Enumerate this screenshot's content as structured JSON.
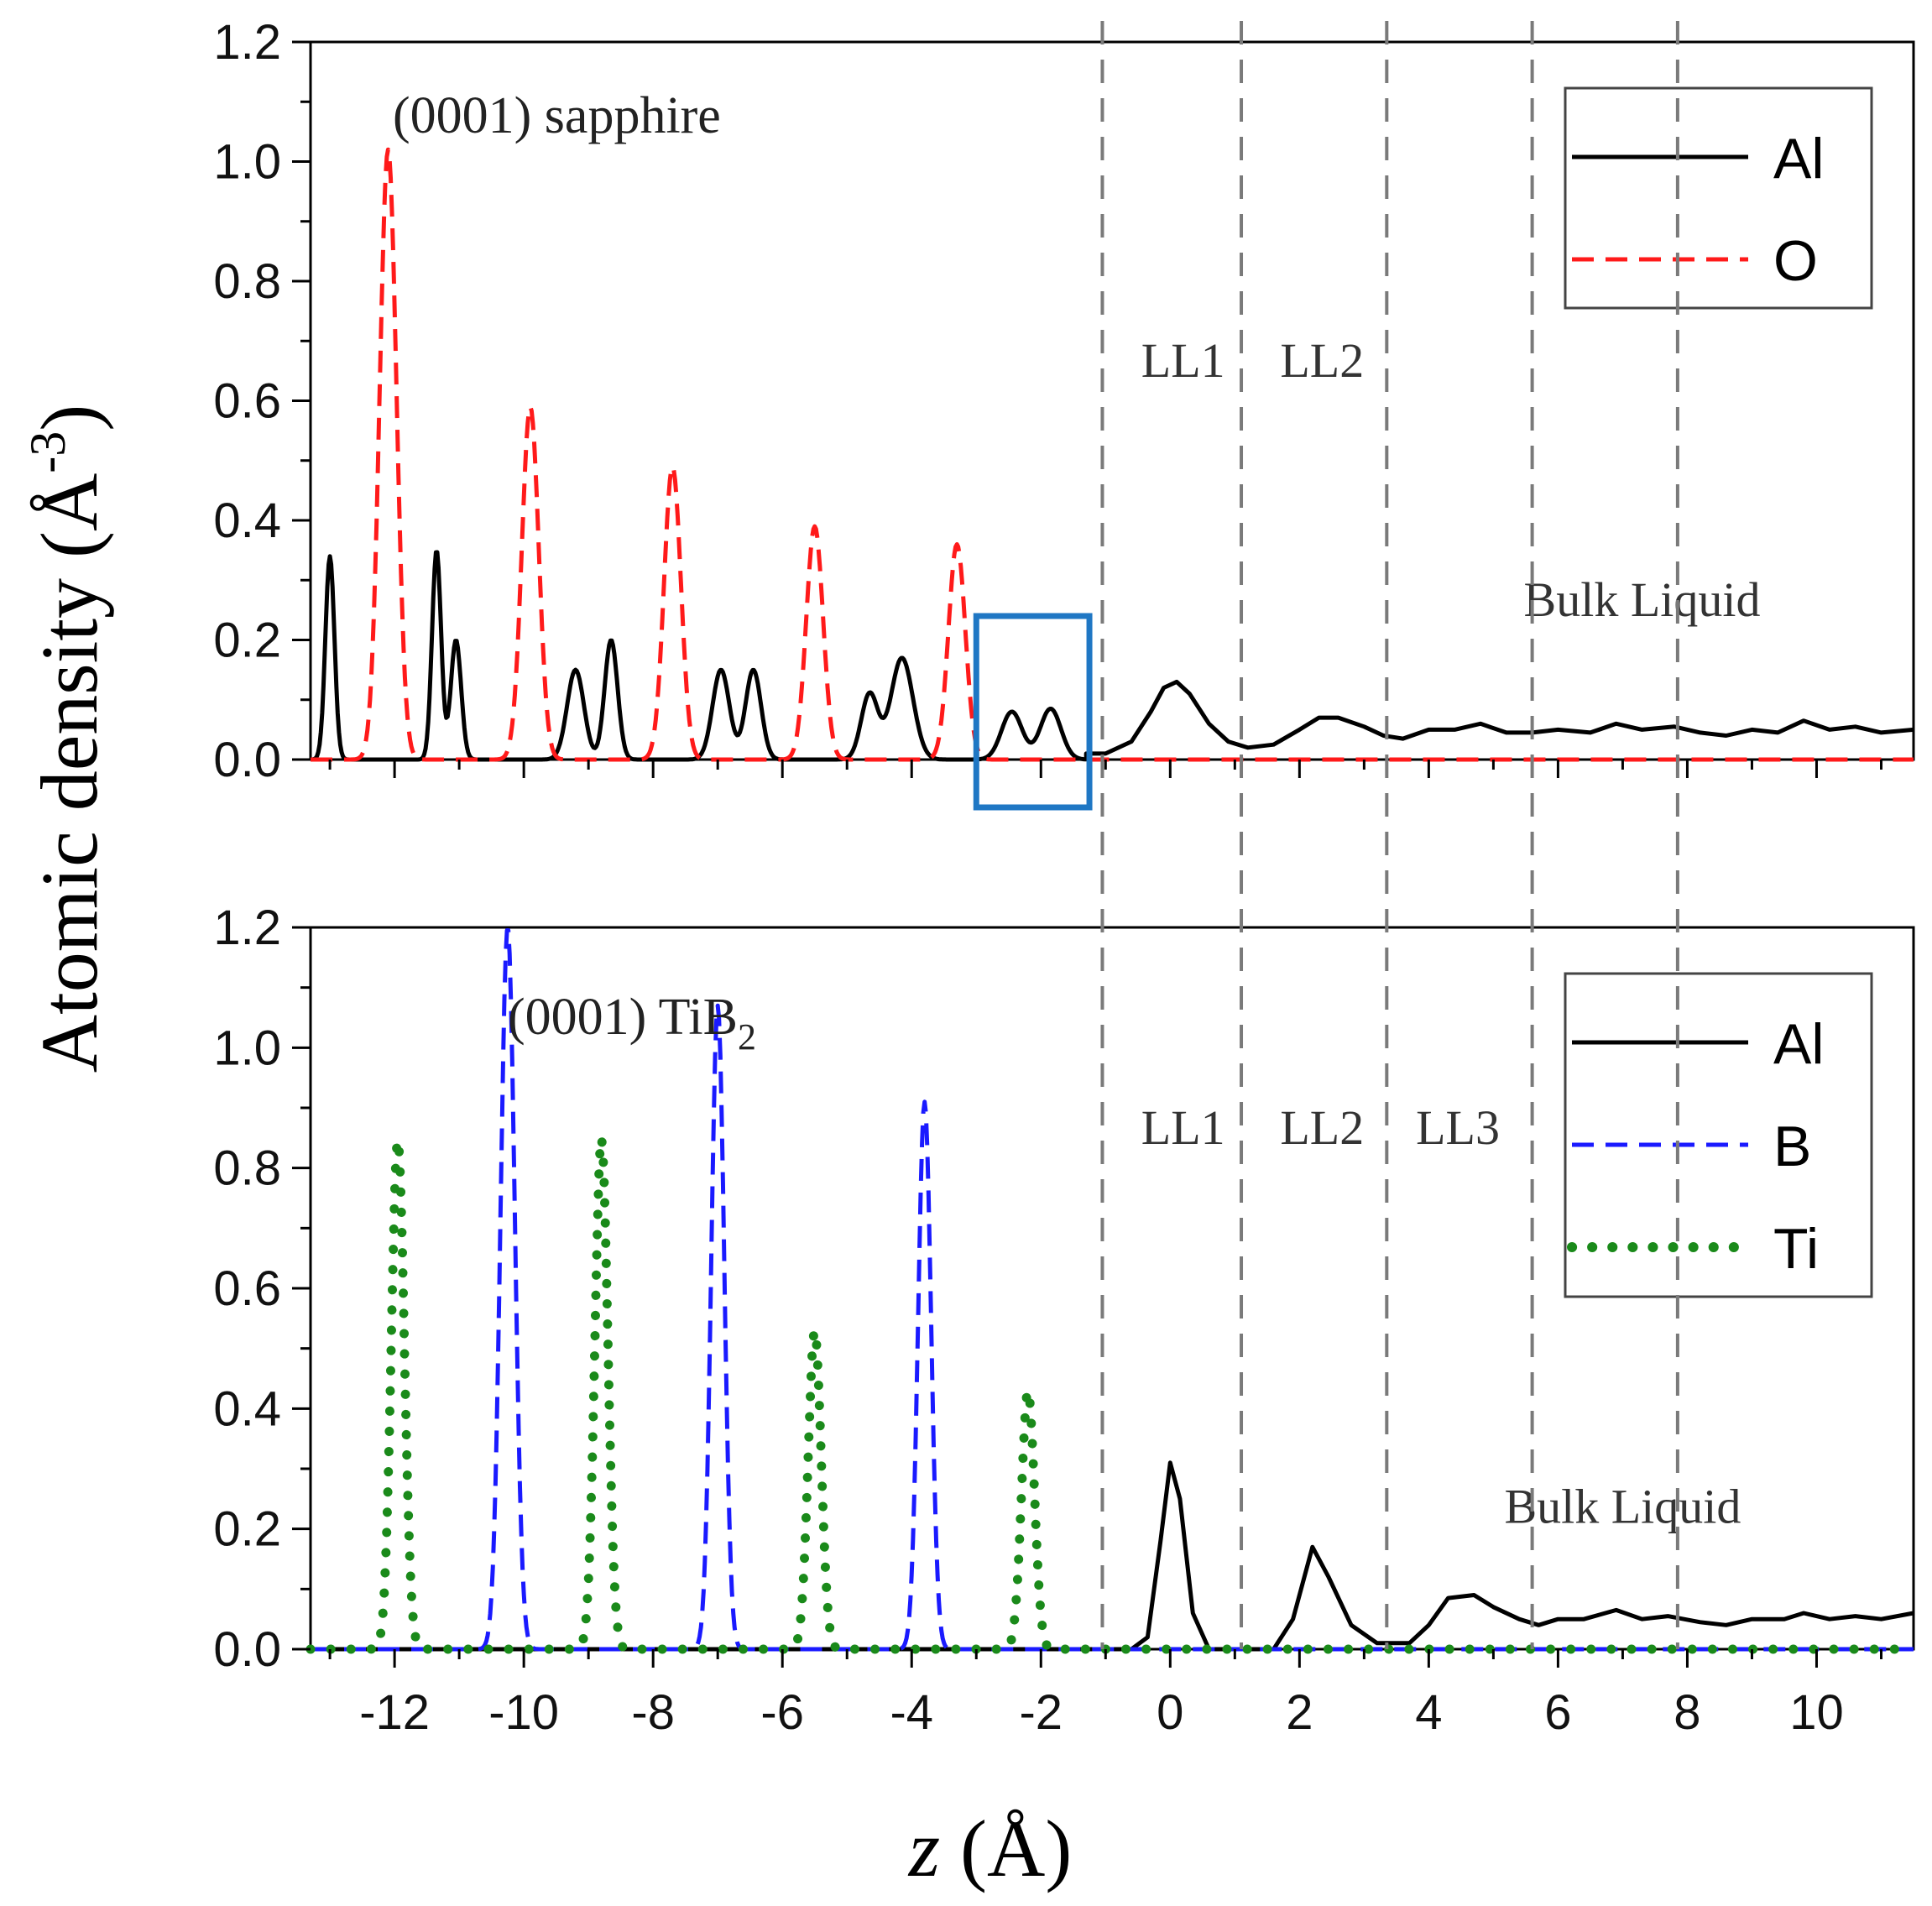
{
  "figure": {
    "ylabel": "Atomic density (Å",
    "ylabel_sup": "-3",
    "ylabel_close": ")",
    "xlabel_italic": "z",
    "xlabel_rest": " (Å)"
  },
  "chart_data": [
    {
      "type": "line",
      "panel": "top",
      "annotation": "(0001) sapphire",
      "xlim": [
        -13.3,
        11.5
      ],
      "ylim": [
        0,
        1.2
      ],
      "yticks": [
        "0.0",
        "0.2",
        "0.4",
        "0.6",
        "0.8",
        "1.0",
        "1.2"
      ],
      "legend_position": "top-right",
      "region_labels": [
        {
          "text": "LL1",
          "x": 0.2,
          "y": 0.64
        },
        {
          "text": "LL2",
          "x": 2.35,
          "y": 0.64
        },
        {
          "text": "Bulk Liquid",
          "x": 7.3,
          "y": 0.24
        }
      ],
      "highlight_box": {
        "x0": -3.0,
        "x1": -1.25,
        "y0": -0.08,
        "y1": 0.24,
        "color": "#1f77c4"
      },
      "series": [
        {
          "name": "Al",
          "color": "#000000",
          "style": "solid",
          "peaks": [
            [
              -13.0,
              0.34,
              0.07
            ],
            [
              -11.35,
              0.35,
              0.07
            ],
            [
              -11.05,
              0.2,
              0.08
            ],
            [
              -9.2,
              0.15,
              0.13
            ],
            [
              -8.65,
              0.2,
              0.1
            ],
            [
              -6.95,
              0.15,
              0.13
            ],
            [
              -6.45,
              0.15,
              0.12
            ],
            [
              -4.65,
              0.11,
              0.13
            ],
            [
              -4.15,
              0.17,
              0.17
            ],
            [
              -2.45,
              0.08,
              0.16
            ],
            [
              -1.85,
              0.085,
              0.16
            ]
          ],
          "tail": [
            [
              -1.3,
              0.01
            ],
            [
              -1.0,
              0.01
            ],
            [
              -0.6,
              0.03
            ],
            [
              -0.3,
              0.08
            ],
            [
              -0.1,
              0.12
            ],
            [
              0.1,
              0.13
            ],
            [
              0.3,
              0.11
            ],
            [
              0.6,
              0.06
            ],
            [
              0.9,
              0.03
            ],
            [
              1.2,
              0.02
            ],
            [
              1.6,
              0.025
            ],
            [
              2.0,
              0.05
            ],
            [
              2.3,
              0.07
            ],
            [
              2.6,
              0.07
            ],
            [
              3.0,
              0.055
            ],
            [
              3.3,
              0.04
            ],
            [
              3.6,
              0.035
            ],
            [
              4.0,
              0.05
            ],
            [
              4.4,
              0.05
            ],
            [
              4.8,
              0.06
            ],
            [
              5.2,
              0.045
            ],
            [
              5.6,
              0.045
            ],
            [
              6.0,
              0.05
            ],
            [
              6.5,
              0.045
            ],
            [
              6.9,
              0.06
            ],
            [
              7.3,
              0.05
            ],
            [
              7.8,
              0.055
            ],
            [
              8.2,
              0.045
            ],
            [
              8.6,
              0.04
            ],
            [
              9.0,
              0.05
            ],
            [
              9.4,
              0.045
            ],
            [
              9.8,
              0.065
            ],
            [
              10.2,
              0.05
            ],
            [
              10.6,
              0.055
            ],
            [
              11.0,
              0.045
            ],
            [
              11.5,
              0.05
            ]
          ]
        },
        {
          "name": "O",
          "color": "#ff1a1a",
          "style": "dashed",
          "peaks": [
            [
              -12.1,
              1.02,
              0.13
            ],
            [
              -9.9,
              0.59,
              0.13
            ],
            [
              -7.7,
              0.49,
              0.13
            ],
            [
              -5.5,
              0.39,
              0.13
            ],
            [
              -3.3,
              0.36,
              0.13
            ]
          ],
          "tail": []
        }
      ]
    },
    {
      "type": "line",
      "panel": "bottom",
      "annotation": "(0001) TiB",
      "annotation_sub": "2",
      "xlim": [
        -13.3,
        11.5
      ],
      "ylim": [
        0,
        1.2
      ],
      "yticks": [
        "0.0",
        "0.2",
        "0.4",
        "0.6",
        "0.8",
        "1.0",
        "1.2"
      ],
      "xticks": [
        -12,
        -10,
        -8,
        -6,
        -4,
        -2,
        0,
        2,
        4,
        6,
        8,
        10
      ],
      "legend_position": "top-right",
      "region_labels": [
        {
          "text": "LL1",
          "x": 0.2,
          "y": 0.84
        },
        {
          "text": "LL2",
          "x": 2.35,
          "y": 0.84
        },
        {
          "text": "LL3",
          "x": 4.45,
          "y": 0.84
        },
        {
          "text": "Bulk Liquid",
          "x": 7.0,
          "y": 0.21
        }
      ],
      "series": [
        {
          "name": "Al",
          "color": "#000000",
          "style": "solid",
          "peaks": [],
          "tail": [
            [
              -13.3,
              0.0
            ],
            [
              -0.6,
              0.0
            ],
            [
              -0.35,
              0.02
            ],
            [
              -0.15,
              0.18
            ],
            [
              0.0,
              0.31
            ],
            [
              0.15,
              0.25
            ],
            [
              0.35,
              0.06
            ],
            [
              0.6,
              0.0
            ],
            [
              1.6,
              0.0
            ],
            [
              1.9,
              0.05
            ],
            [
              2.2,
              0.17
            ],
            [
              2.45,
              0.12
            ],
            [
              2.8,
              0.04
            ],
            [
              3.2,
              0.01
            ],
            [
              3.7,
              0.01
            ],
            [
              4.0,
              0.04
            ],
            [
              4.3,
              0.085
            ],
            [
              4.7,
              0.09
            ],
            [
              5.0,
              0.07
            ],
            [
              5.4,
              0.05
            ],
            [
              5.7,
              0.04
            ],
            [
              6.0,
              0.05
            ],
            [
              6.4,
              0.05
            ],
            [
              6.9,
              0.065
            ],
            [
              7.3,
              0.05
            ],
            [
              7.7,
              0.055
            ],
            [
              8.2,
              0.045
            ],
            [
              8.6,
              0.04
            ],
            [
              9.0,
              0.05
            ],
            [
              9.5,
              0.05
            ],
            [
              9.8,
              0.06
            ],
            [
              10.2,
              0.05
            ],
            [
              10.6,
              0.055
            ],
            [
              11.0,
              0.05
            ],
            [
              11.5,
              0.06
            ]
          ]
        },
        {
          "name": "B",
          "color": "#1a1aff",
          "style": "dashed",
          "peaks": [
            [
              -10.25,
              1.2,
              0.11
            ],
            [
              -7.0,
              1.07,
              0.1
            ],
            [
              -3.8,
              0.91,
              0.1
            ]
          ],
          "tail": []
        },
        {
          "name": "Ti",
          "color": "#1a8a1a",
          "style": "dotted",
          "peaks": [
            [
              -11.95,
              0.85,
              0.1
            ],
            [
              -8.8,
              0.85,
              0.1
            ],
            [
              -5.5,
              0.53,
              0.1
            ],
            [
              -2.2,
              0.43,
              0.1
            ]
          ],
          "tail": []
        }
      ]
    }
  ],
  "dividers_x": [
    -1.05,
    1.1,
    3.35,
    5.6,
    7.85
  ]
}
